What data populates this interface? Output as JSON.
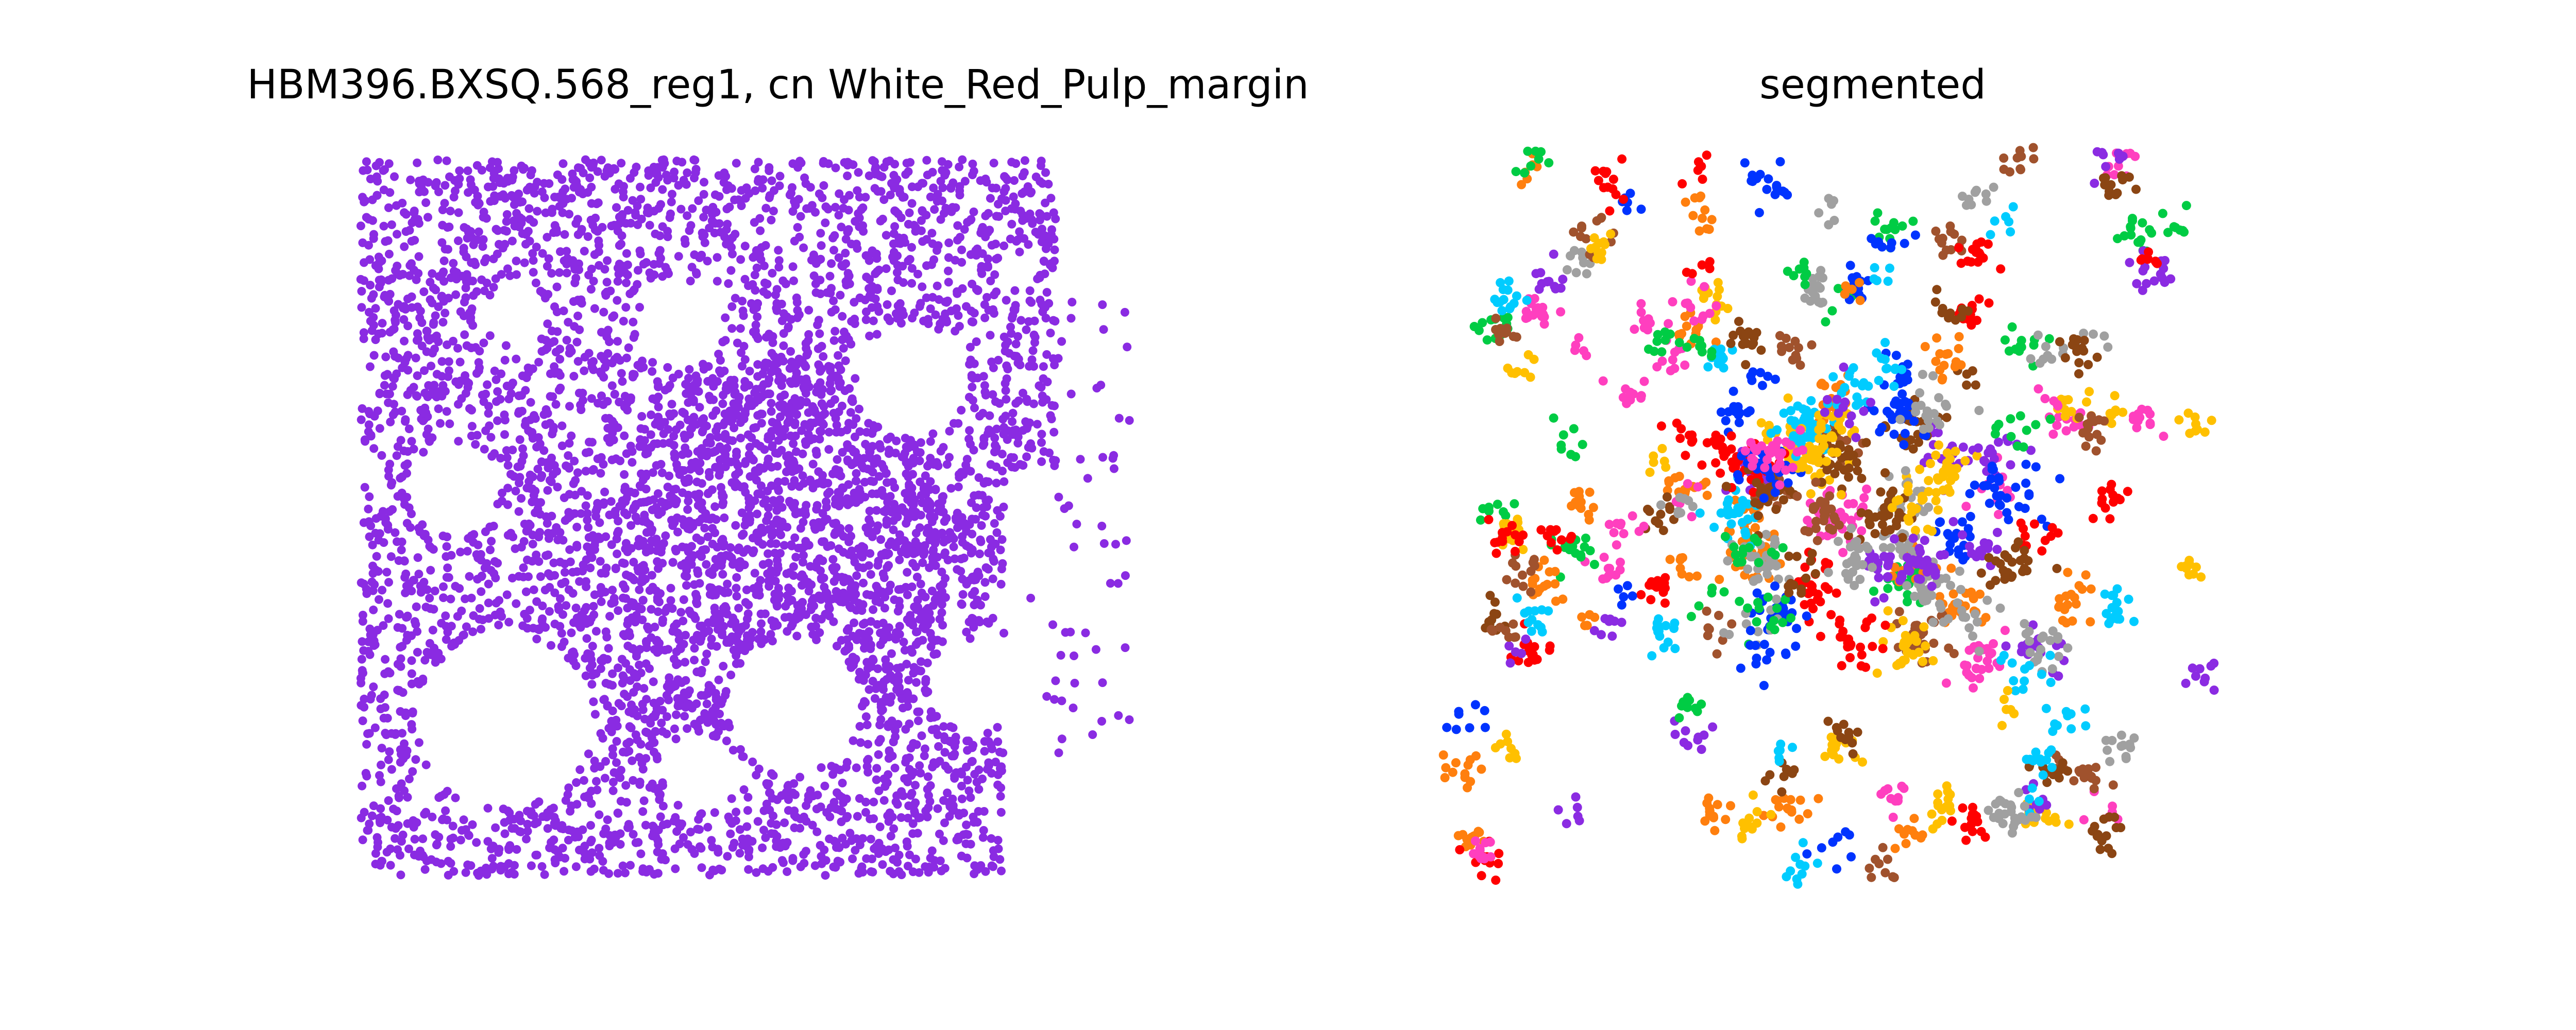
{
  "chart_data": [
    {
      "type": "scatter",
      "title": "HBM396.BXSQ.568_reg1, cn White_Red_Pulp_margin",
      "axes_visible": false,
      "point_color": "#8a2be2",
      "xlim": [
        0,
        1
      ],
      "ylim": [
        0,
        1
      ],
      "description": "single-class cell scatter, dense field with holes (white pulp regions)"
    },
    {
      "type": "scatter",
      "title": "segmented",
      "axes_visible": false,
      "xlim": [
        0,
        1
      ],
      "ylim": [
        0,
        1
      ],
      "palette": [
        "#ff7f0e",
        "#0033ff",
        "#a0a0a0",
        "#ff0000",
        "#a0522d",
        "#00cc44",
        "#ffc000",
        "#ff3fbf",
        "#00ccff",
        "#8b2be2",
        "#8b4513"
      ]
    }
  ]
}
